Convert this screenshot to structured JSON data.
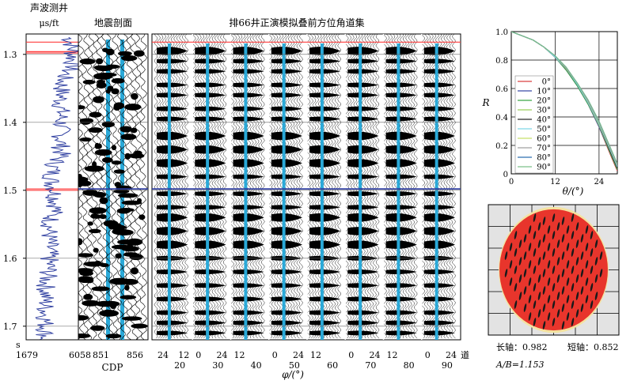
{
  "well_panel": {
    "title": "声波测井",
    "unit": "μs/ft",
    "x_min_label": "1679",
    "x_max_label": "6058",
    "x_range": [
      1679,
      6058
    ],
    "line_color": "#2f3fa0"
  },
  "time_axis": {
    "unit": "s",
    "ticks": [
      1.3,
      1.4,
      1.5,
      1.6,
      1.7
    ],
    "range": [
      1.27,
      1.72
    ],
    "event_color": "#ff3c3c"
  },
  "seismic_panel": {
    "title": "地震剖面",
    "xlabel": "CDP",
    "tick_labels": [
      "851",
      "856"
    ],
    "highlight_color": "#2aa9d8"
  },
  "gather_panel": {
    "title": "排66井正演模拟叠前方位角道集",
    "xlabel": "φ/(°)",
    "trace_suffix": "道",
    "groups": [
      {
        "top_left": "24",
        "top_right": "12",
        "bottom": "20"
      },
      {
        "top_left": "0",
        "top_right": "24",
        "bottom": "30"
      },
      {
        "top_left": "12",
        "top_right": "",
        "bottom": "40"
      },
      {
        "top_left": "0",
        "top_right": "24",
        "bottom": "50"
      },
      {
        "top_left": "12",
        "top_right": "",
        "bottom": "60"
      },
      {
        "top_left": "0",
        "top_right": "24",
        "bottom": "70"
      },
      {
        "top_left": "12",
        "top_right": "",
        "bottom": "80"
      },
      {
        "top_left": "0",
        "top_right": "24",
        "bottom": "90"
      }
    ]
  },
  "chart_data": {
    "type": "line",
    "xlabel": "θ/(°)",
    "ylabel": "R",
    "xlim": [
      0,
      29
    ],
    "ylim": [
      0,
      1.0
    ],
    "x_ticks": [
      0,
      12,
      24
    ],
    "y_ticks": [
      0,
      0.2,
      0.4,
      0.6,
      0.8,
      1.0
    ],
    "y_tick_labels": [
      "0",
      "0.2",
      "0.4",
      "0.6",
      "0.8",
      "1.0"
    ],
    "grid": true,
    "legend_position": "left",
    "x": [
      0,
      3,
      6,
      9,
      12,
      15,
      18,
      21,
      24,
      27,
      29
    ],
    "series": [
      {
        "name": "0°",
        "color": "#d94040",
        "values": [
          1.0,
          0.97,
          0.94,
          0.89,
          0.82,
          0.73,
          0.62,
          0.49,
          0.33,
          0.14,
          0.02
        ]
      },
      {
        "name": "10°",
        "color": "#3a4aa8",
        "values": [
          1.0,
          0.97,
          0.94,
          0.89,
          0.82,
          0.73,
          0.62,
          0.49,
          0.33,
          0.15,
          0.03
        ]
      },
      {
        "name": "20°",
        "color": "#3aa848",
        "values": [
          1.0,
          0.97,
          0.94,
          0.89,
          0.82,
          0.73,
          0.62,
          0.49,
          0.34,
          0.15,
          0.03
        ]
      },
      {
        "name": "30°",
        "color": "#9ad05a",
        "values": [
          1.0,
          0.97,
          0.94,
          0.89,
          0.82,
          0.74,
          0.63,
          0.5,
          0.34,
          0.16,
          0.04
        ]
      },
      {
        "name": "40°",
        "color": "#2a2a2a",
        "values": [
          1.0,
          0.97,
          0.94,
          0.89,
          0.82,
          0.74,
          0.63,
          0.5,
          0.35,
          0.16,
          0.04
        ]
      },
      {
        "name": "50°",
        "color": "#7fd7e8",
        "values": [
          1.0,
          0.97,
          0.94,
          0.89,
          0.82,
          0.74,
          0.63,
          0.5,
          0.35,
          0.17,
          0.05
        ]
      },
      {
        "name": "60°",
        "color": "#c6e06a",
        "values": [
          1.0,
          0.97,
          0.94,
          0.89,
          0.83,
          0.74,
          0.64,
          0.51,
          0.36,
          0.18,
          0.06
        ]
      },
      {
        "name": "70°",
        "color": "#a0a0a0",
        "values": [
          1.0,
          0.97,
          0.94,
          0.89,
          0.83,
          0.74,
          0.64,
          0.51,
          0.36,
          0.18,
          0.06
        ]
      },
      {
        "name": "80°",
        "color": "#2c6fb0",
        "values": [
          1.0,
          0.97,
          0.94,
          0.89,
          0.83,
          0.75,
          0.64,
          0.52,
          0.37,
          0.19,
          0.07
        ]
      },
      {
        "name": "90°",
        "color": "#7cc08a",
        "values": [
          1.0,
          0.97,
          0.94,
          0.89,
          0.83,
          0.75,
          0.64,
          0.52,
          0.37,
          0.19,
          0.07
        ]
      }
    ]
  },
  "ellipse_panel": {
    "long_axis_label": "长轴：0.982",
    "short_axis_label": "短轴：0.852",
    "ratio_label": "A/B=1.153",
    "long_axis": 0.982,
    "short_axis": 0.852,
    "fill_color": "#e8352c",
    "background_color": "#e3e3e3",
    "rim_color": "#f4e3a0"
  }
}
